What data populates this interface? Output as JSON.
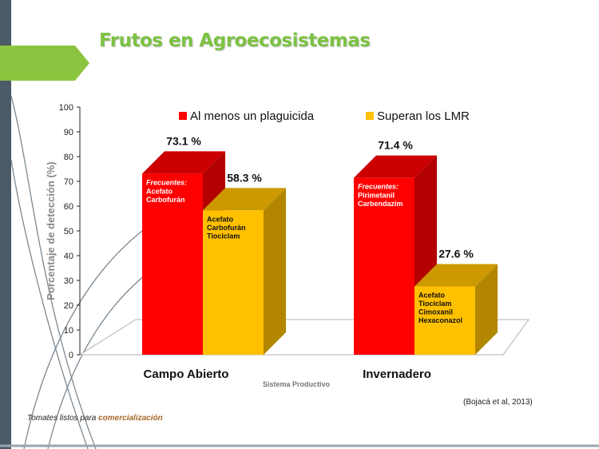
{
  "slide": {
    "title": "Frutos en Agroecosistemas",
    "source": "(Bojacá et al, 2013)",
    "footnote_prefix": "Tomates listos para",
    "footnote_highlight": "comercialización"
  },
  "colors": {
    "accent_green": "#7cc242",
    "left_bar_dark": "#4a5a66",
    "series_red": "#ff0000",
    "series_yellow": "#ffc000"
  },
  "chart_data": {
    "type": "bar",
    "ylabel": "Porcentaje de detección (%)",
    "xlabel": "Sistema Productivo",
    "ylim": [
      0,
      100
    ],
    "yticks": [
      0,
      10,
      20,
      30,
      40,
      50,
      60,
      70,
      80,
      90,
      100
    ],
    "categories": [
      "Campo Abierto",
      "Invernadero"
    ],
    "series": [
      {
        "name": "Al menos un plaguicida",
        "color": "#ff0000",
        "values": [
          73.1,
          71.4
        ],
        "labels": [
          "73.1 %",
          "71.4 %"
        ],
        "notes": [
          {
            "title": "Frecuentes:",
            "lines": [
              "Acefato",
              "Carbofurán"
            ]
          },
          {
            "title": "Frecuentes:",
            "lines": [
              "Pirimetanil",
              "Carbendazim"
            ]
          }
        ]
      },
      {
        "name": "Superan los LMR",
        "color": "#ffc000",
        "values": [
          58.3,
          27.6
        ],
        "labels": [
          "58.3 %",
          "27.6 %"
        ],
        "notes": [
          {
            "title": "",
            "lines": [
              "Acefato",
              "Carbofurán",
              "Tiociclam"
            ]
          },
          {
            "title": "",
            "lines": [
              "Acefato",
              "Tiociclam",
              "Cimoxanil",
              "Hexaconazol"
            ]
          }
        ]
      }
    ],
    "legend_position": "top",
    "grid": false
  }
}
